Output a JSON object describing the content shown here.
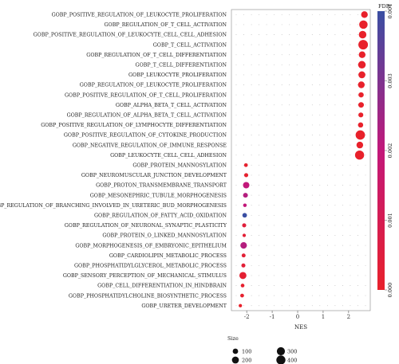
{
  "chart_data": {
    "type": "scatter",
    "xlabel": "NES",
    "xlim": [
      -2.6,
      2.85
    ],
    "x_ticks": [
      "-2",
      "-1",
      "0",
      "1",
      "2"
    ],
    "x_tick_values": [
      -2,
      -1,
      0,
      1,
      2
    ],
    "grid": true,
    "categories": [
      "GOBP_POSITIVE_REGULATION_OF_LEUKOCYTE_PROLIFERATION",
      "GOBP_REGULATION_OF_T_CELL_ACTIVATION",
      "GOBP_POSITIVE_REGULATION_OF_LEUKOCYTE_CELL_CELL_ADHESION",
      "GOBP_T_CELL_ACTIVATION",
      "GOBP_REGULATION_OF_T_CELL_DIFFERENTIATION",
      "GOBP_T_CELL_DIFFERENTIATION",
      "GOBP_LEUKOCYTE_PROLIFERATION",
      "GOBP_REGULATION_OF_LEUKOCYTE_PROLIFERATION",
      "GOBP_POSITIVE_REGULATION_OF_T_CELL_PROLIFERATION",
      "GOBP_ALPHA_BETA_T_CELL_ACTIVATION",
      "GOBP_REGULATION_OF_ALPHA_BETA_T_CELL_ACTIVATION",
      "GOBP_POSITIVE_REGULATION_OF_LYMPHOCYTE_DIFFERENTIATION",
      "GOBP_POSITIVE_REGULATION_OF_CYTOKINE_PRODUCTION",
      "GOBP_NEGATIVE_REGULATION_OF_IMMUNE_RESPONSE",
      "GOBP_LEUKOCYTE_CELL_CELL_ADHESION",
      "GOBP_PROTEIN_MANNOSYLATION",
      "GOBP_NEUROMUSCULAR_JUNCTION_DEVELOPMENT",
      "GOBP_PROTON_TRANSMEMBRANE_TRANSPORT",
      "GOBP_MESONEPHRIC_TUBULE_MORPHOGENESIS",
      "GOBP_REGULATION_OF_BRANCHING_INVOLVED_IN_URETERIC_BUD_MORPHOGENESIS",
      "GOBP_REGULATION_OF_FATTY_ACID_OXIDATION",
      "GOBP_REGULATION_OF_NEURONAL_SYNAPTIC_PLASTICITY",
      "GOBP_PROTEIN_O_LINKED_MANNOSYLATION",
      "GOBP_MORPHOGENESIS_OF_EMBRYONIC_EPITHELIUM",
      "GOBP_CARDIOLIPIN_METABOLIC_PROCESS",
      "GOBP_PHOSPHATIDYLGLYCEROL_METABOLIC_PROCESS",
      "GOBP_SENSORY_PERCEPTION_OF_MECHANICAL_STIMULUS",
      "GOBP_CELL_DIFFERENTIATION_IN_HINDBRAIN",
      "GOBP_PHOSPHATIDYLCHOLINE_BIOSYNTHETIC_PROCESS",
      "GOBP_URETER_DEVELOPMENT"
    ],
    "points": [
      {
        "nes": 2.62,
        "size": 180,
        "fdr": 0.0
      },
      {
        "nes": 2.58,
        "size": 330,
        "fdr": 0.0
      },
      {
        "nes": 2.55,
        "size": 250,
        "fdr": 0.0
      },
      {
        "nes": 2.57,
        "size": 450,
        "fdr": 0.0
      },
      {
        "nes": 2.53,
        "size": 180,
        "fdr": 0.0
      },
      {
        "nes": 2.52,
        "size": 250,
        "fdr": 0.0
      },
      {
        "nes": 2.52,
        "size": 200,
        "fdr": 0.0
      },
      {
        "nes": 2.5,
        "size": 180,
        "fdr": 0.0
      },
      {
        "nes": 2.49,
        "size": 90,
        "fdr": 0.0
      },
      {
        "nes": 2.49,
        "size": 110,
        "fdr": 0.0
      },
      {
        "nes": 2.48,
        "size": 75,
        "fdr": 0.0
      },
      {
        "nes": 2.47,
        "size": 90,
        "fdr": 0.0
      },
      {
        "nes": 2.46,
        "size": 430,
        "fdr": 0.0
      },
      {
        "nes": 2.44,
        "size": 180,
        "fdr": 0.0
      },
      {
        "nes": 2.43,
        "size": 400,
        "fdr": 0.0
      },
      {
        "nes": -2.03,
        "size": 30,
        "fdr": 0.0001
      },
      {
        "nes": -2.02,
        "size": 40,
        "fdr": 0.0001
      },
      {
        "nes": -2.02,
        "size": 160,
        "fdr": 0.002
      },
      {
        "nes": -2.05,
        "size": 70,
        "fdr": 0.0022
      },
      {
        "nes": -2.07,
        "size": 25,
        "fdr": 0.002
      },
      {
        "nes": -2.08,
        "size": 60,
        "fdr": 0.004
      },
      {
        "nes": -2.1,
        "size": 40,
        "fdr": 0.0004
      },
      {
        "nes": -2.1,
        "size": 20,
        "fdr": 0.0003
      },
      {
        "nes": -2.12,
        "size": 170,
        "fdr": 0.0022
      },
      {
        "nes": -2.12,
        "size": 35,
        "fdr": 0.0003
      },
      {
        "nes": -2.13,
        "size": 40,
        "fdr": 0.0003
      },
      {
        "nes": -2.15,
        "size": 210,
        "fdr": 0.0002
      },
      {
        "nes": -2.16,
        "size": 30,
        "fdr": 0.0001
      },
      {
        "nes": -2.18,
        "size": 30,
        "fdr": 0.0001
      },
      {
        "nes": -2.25,
        "size": 20,
        "fdr": 0.0
      }
    ],
    "color_legend": {
      "title": "FDR",
      "range": [
        0.0,
        0.004
      ],
      "ticks": [
        "0.000",
        "0.001",
        "0.002",
        "0.003",
        "0.004"
      ],
      "tick_values": [
        0.0,
        0.001,
        0.002,
        0.003,
        0.004
      ],
      "colors": [
        "#e8212b",
        "#c2187a",
        "#3a4fa3"
      ]
    },
    "size_legend": {
      "title": "Size",
      "entries": [
        {
          "label": "100",
          "value": 100
        },
        {
          "label": "200",
          "value": 200
        },
        {
          "label": "300",
          "value": 300
        },
        {
          "label": "400",
          "value": 400
        }
      ]
    }
  }
}
